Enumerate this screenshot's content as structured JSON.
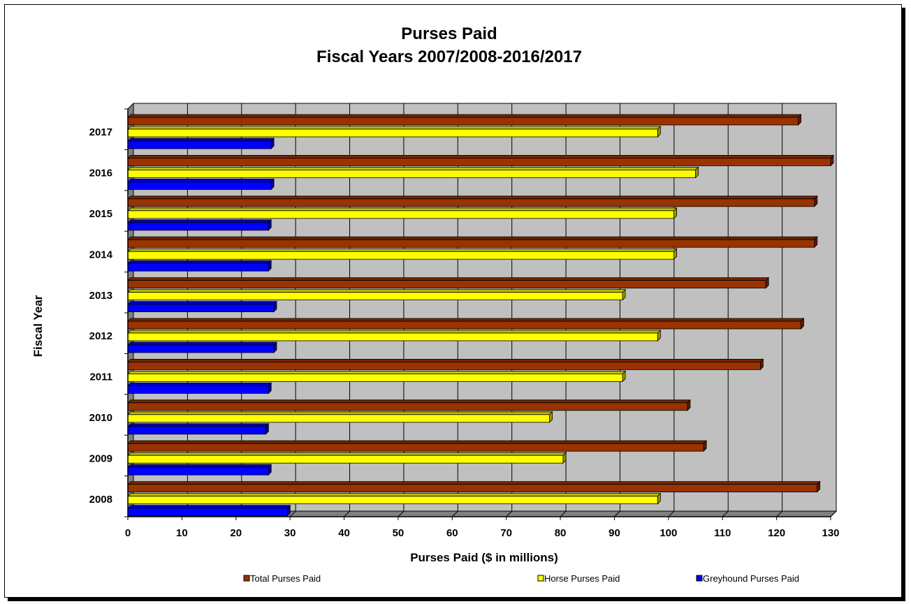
{
  "chart_data": {
    "type": "bar",
    "orientation": "horizontal",
    "three_d": true,
    "title_lines": [
      "Purses Paid",
      "Fiscal Years 2007/2008-2016/2017"
    ],
    "xlabel": "Purses Paid ($ in millions)",
    "ylabel": "Fiscal Year",
    "xlim": [
      0,
      130
    ],
    "xticks": [
      "0",
      "10",
      "20",
      "30",
      "40",
      "50",
      "60",
      "70",
      "80",
      "90",
      "100",
      "110",
      "120",
      "130"
    ],
    "categories": [
      "2008",
      "2009",
      "2010",
      "2011",
      "2012",
      "2013",
      "2014",
      "2015",
      "2016",
      "2017"
    ],
    "grid": true,
    "legend_position": "bottom",
    "series": [
      {
        "name": "Total Purses Paid",
        "color": "#993300",
        "values": [
          127.5,
          106.5,
          103.5,
          117,
          124.5,
          118,
          127,
          127,
          130,
          124
        ]
      },
      {
        "name": "Horse Purses Paid",
        "color": "#FFFF00",
        "values": [
          98,
          80.5,
          78,
          91.5,
          98,
          91.5,
          101,
          101,
          105,
          98
        ]
      },
      {
        "name": "Greyhound Purses Paid",
        "color": "#0000FF",
        "values": [
          29.5,
          26,
          25.5,
          26,
          27,
          27,
          26,
          26,
          26.5,
          26.5
        ]
      }
    ]
  }
}
